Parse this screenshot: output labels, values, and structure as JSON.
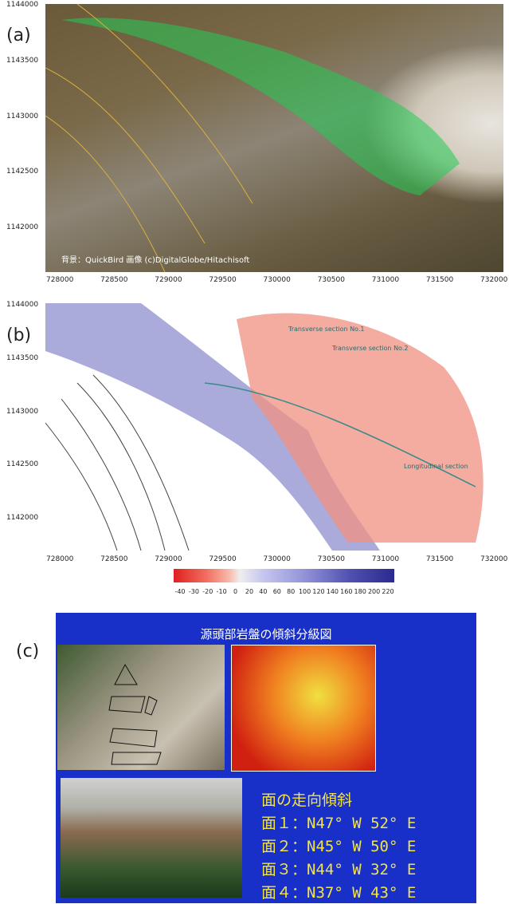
{
  "panels": {
    "a": {
      "label": "(a)",
      "yticks": [
        1144000,
        1143500,
        1143000,
        1142500,
        1142000
      ],
      "xticks": [
        728000,
        728500,
        729000,
        729500,
        730000,
        730500,
        731000,
        731500,
        732000
      ],
      "credit": "背景：QuickBird 画像 (c)DigitalGlobe/Hitachisoft"
    },
    "b": {
      "label": "(b)",
      "yticks": [
        1144000,
        1143500,
        1143000,
        1142500,
        1142000
      ],
      "xticks": [
        728000,
        728500,
        729000,
        729500,
        730000,
        730500,
        731000,
        731500,
        732000
      ],
      "annotations": [
        "Transverse section No.1",
        "Transverse section No.2",
        "Longitudinal section"
      ],
      "colorbar_ticks": [
        -40,
        -30,
        -20,
        -10,
        0,
        20,
        40,
        60,
        80,
        100,
        120,
        140,
        160,
        180,
        200,
        220
      ]
    },
    "c": {
      "label": "(c)",
      "title": "源頭部岩盤の傾斜分級図",
      "list_title": "面の走向傾斜",
      "list": [
        "面１：N47° W 52° E",
        "面２：N45° W 50° E",
        "面３：N44° W 32° E",
        "面４：N37° W 43° E"
      ]
    }
  }
}
